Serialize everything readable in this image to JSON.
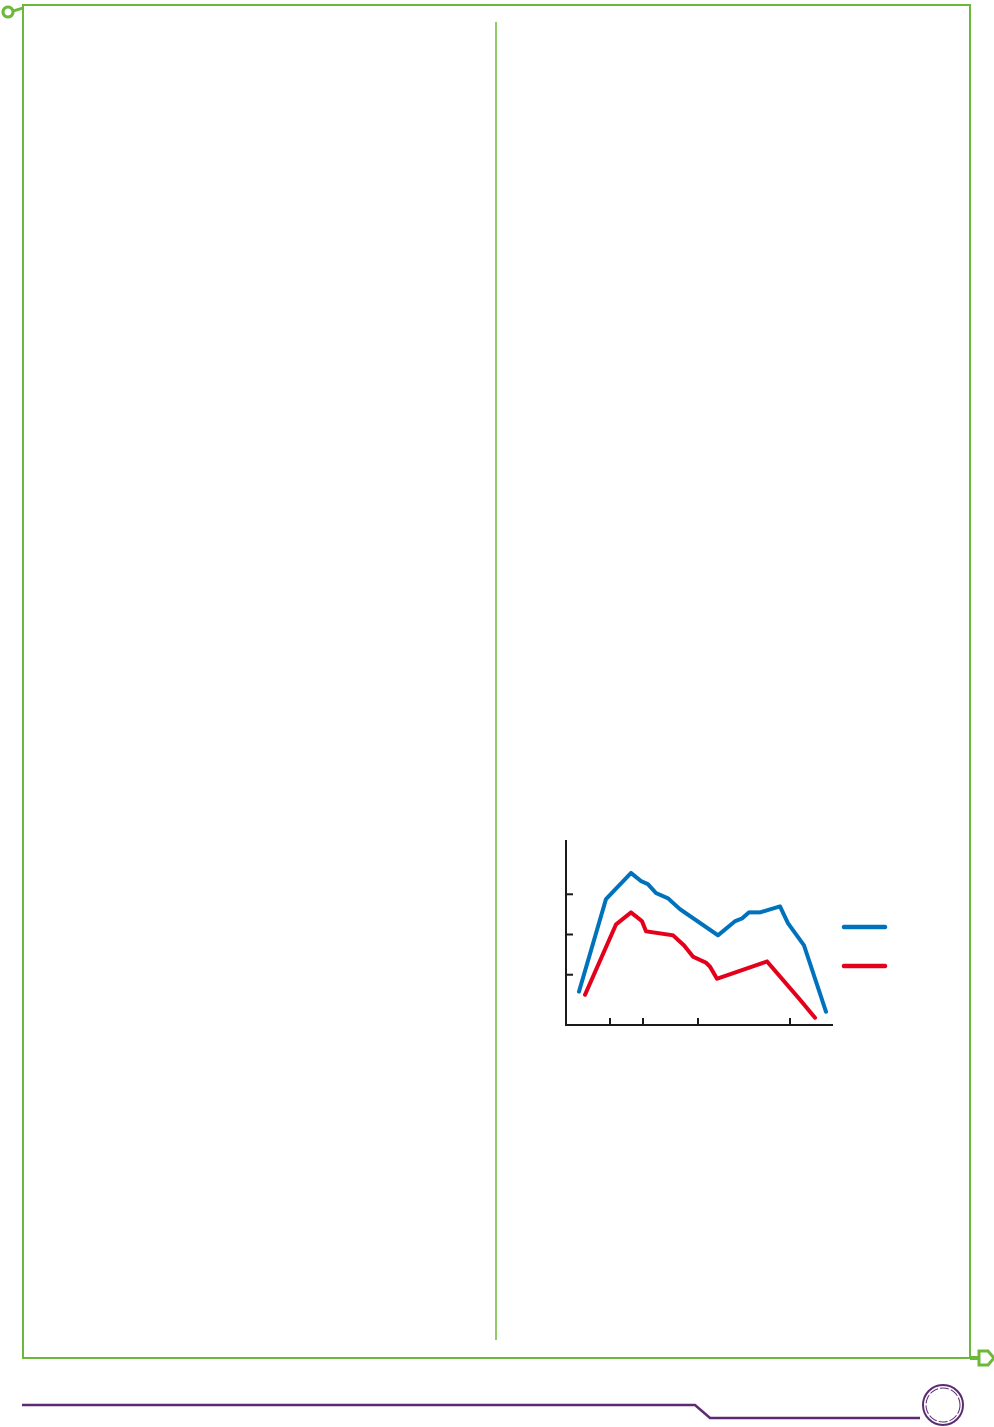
{
  "colors": {
    "frame": "#6cb83a",
    "footer": "#5c2a73",
    "series_blue": "#0072bc",
    "series_red": "#e2001a",
    "axis": "#1a1a1a"
  },
  "chart_data": {
    "type": "line",
    "title": "",
    "xlabel": "",
    "ylabel": "",
    "xlim": [
      0,
      26.7
    ],
    "ylim": [
      0,
      4.6
    ],
    "x_ticks": [
      4.4,
      7.7,
      13.2,
      22.4
    ],
    "y_ticks": [
      1.25,
      2.25,
      3.25
    ],
    "grid": false,
    "legend": "right",
    "series": [
      {
        "color": "#0072bc",
        "x": [
          1.3,
          4,
          6.5,
          7.5,
          8.2,
          9,
          10.2,
          11.4,
          15.2,
          16.9,
          17.6,
          18.3,
          19.4,
          21.4,
          22.2,
          23.8,
          26
        ],
        "y": [
          0.83,
          3.13,
          3.78,
          3.58,
          3.5,
          3.28,
          3.15,
          2.88,
          2.23,
          2.58,
          2.65,
          2.8,
          2.8,
          2.95,
          2.53,
          1.98,
          0.33
        ]
      },
      {
        "color": "#e2001a",
        "x": [
          1.9,
          5,
          6.5,
          7.6,
          8,
          10.7,
          11.8,
          12.7,
          14,
          14.4,
          15.1,
          20.1,
          23.4,
          24.9
        ],
        "y": [
          0.75,
          2.5,
          2.8,
          2.58,
          2.33,
          2.23,
          1.98,
          1.7,
          1.55,
          1.45,
          1.15,
          1.58,
          0.63,
          0.18
        ]
      }
    ]
  }
}
